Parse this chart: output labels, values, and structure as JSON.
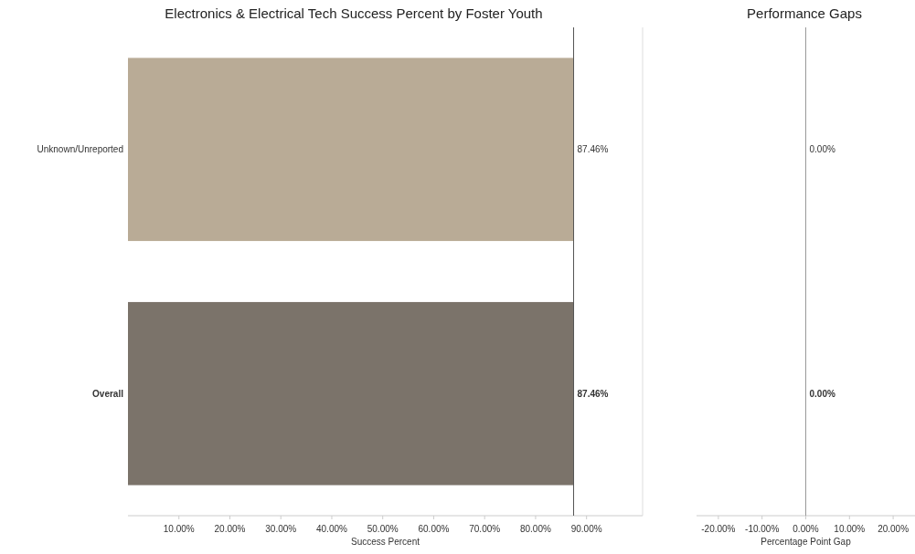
{
  "chart_data": [
    {
      "type": "bar",
      "orientation": "horizontal",
      "title": "Electronics & Electrical Tech Success Percent by Foster Youth",
      "xlabel": "Success Percent",
      "categories": [
        "Unknown/Unreported",
        "Overall"
      ],
      "values": [
        87.46,
        87.46
      ],
      "colors": [
        "#b9ab96",
        "#7b736a"
      ],
      "value_labels": [
        "87.46%",
        "87.46%"
      ],
      "xlim": [
        0,
        101
      ],
      "xticks": [
        {
          "value": 10,
          "label": "10.00%"
        },
        {
          "value": 20,
          "label": "20.00%"
        },
        {
          "value": 30,
          "label": "30.00%"
        },
        {
          "value": 40,
          "label": "40.00%"
        },
        {
          "value": 50,
          "label": "50.00%"
        },
        {
          "value": 60,
          "label": "60.00%"
        },
        {
          "value": 70,
          "label": "70.00%"
        },
        {
          "value": 80,
          "label": "80.00%"
        },
        {
          "value": 90,
          "label": "90.00%"
        }
      ],
      "ref_lines": [
        {
          "axis": "x",
          "value": 87.46,
          "color": "#555555"
        }
      ]
    },
    {
      "type": "bar",
      "orientation": "horizontal",
      "title": "Performance Gaps",
      "xlabel": "Percentage Point Gap",
      "categories": [
        null,
        null
      ],
      "values": [
        0,
        0
      ],
      "colors": [
        "#b9ab96",
        "#7b736a"
      ],
      "value_labels": [
        "0.00%",
        "0.00%"
      ],
      "xlim": [
        -25,
        25
      ],
      "xticks": [
        {
          "value": -20,
          "label": "-20.00%"
        },
        {
          "value": -10,
          "label": "-10.00%"
        },
        {
          "value": 0,
          "label": "0.00%"
        },
        {
          "value": 10,
          "label": "10.00%"
        },
        {
          "value": 20,
          "label": "20.00%"
        }
      ],
      "ref_lines": [
        {
          "axis": "x",
          "value": 0,
          "color": "#999999"
        }
      ]
    }
  ]
}
